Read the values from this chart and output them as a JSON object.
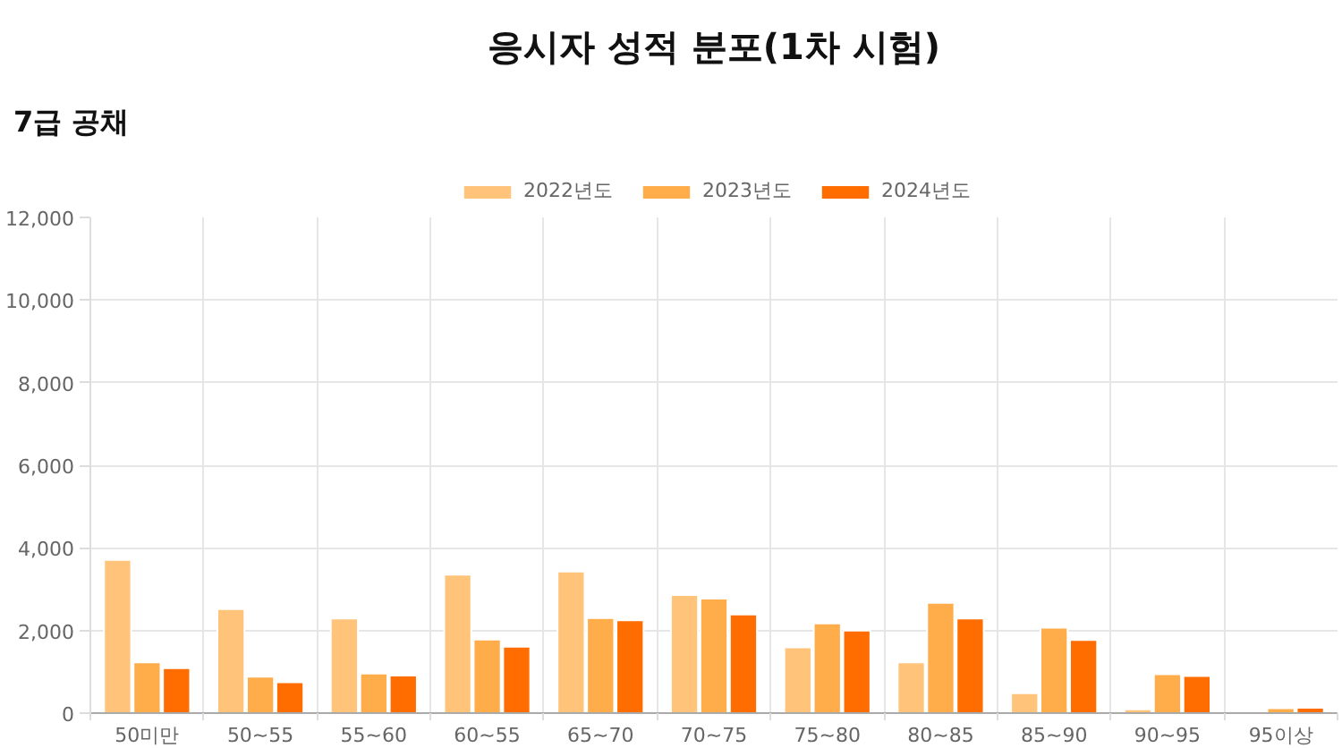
{
  "chart_data": {
    "type": "bar",
    "title": "응시자 성적 분포(1차 시험)",
    "subtitle": "7급 공채",
    "categories": [
      "50미만",
      "50~55",
      "55~60",
      "60~55",
      "65~70",
      "70~75",
      "75~80",
      "80~85",
      "85~90",
      "90~95",
      "95이상"
    ],
    "series": [
      {
        "name": "2022년도",
        "color": "#ffc47a",
        "values": [
          3710,
          2520,
          2290,
          3350,
          3430,
          2860,
          1590,
          1230,
          480,
          90,
          0
        ]
      },
      {
        "name": "2023년도",
        "color": "#ffad4a",
        "values": [
          1230,
          880,
          960,
          1780,
          2300,
          2770,
          2170,
          2670,
          2070,
          940,
          120
        ]
      },
      {
        "name": "2024년도",
        "color": "#ff6d00",
        "values": [
          1090,
          750,
          910,
          1610,
          2250,
          2390,
          2000,
          2290,
          1770,
          900,
          130
        ]
      }
    ],
    "ylim": [
      0,
      12000
    ],
    "yticks": [
      {
        "value": 0,
        "label": "0"
      },
      {
        "value": 2000,
        "label": "2,000"
      },
      {
        "value": 4000,
        "label": "4,000"
      },
      {
        "value": 6000,
        "label": "6,000"
      },
      {
        "value": 8000,
        "label": "8,000"
      },
      {
        "value": 10000,
        "label": "10,000"
      },
      {
        "value": 12000,
        "label": "12,000"
      }
    ],
    "grid": true,
    "legend": "top"
  }
}
